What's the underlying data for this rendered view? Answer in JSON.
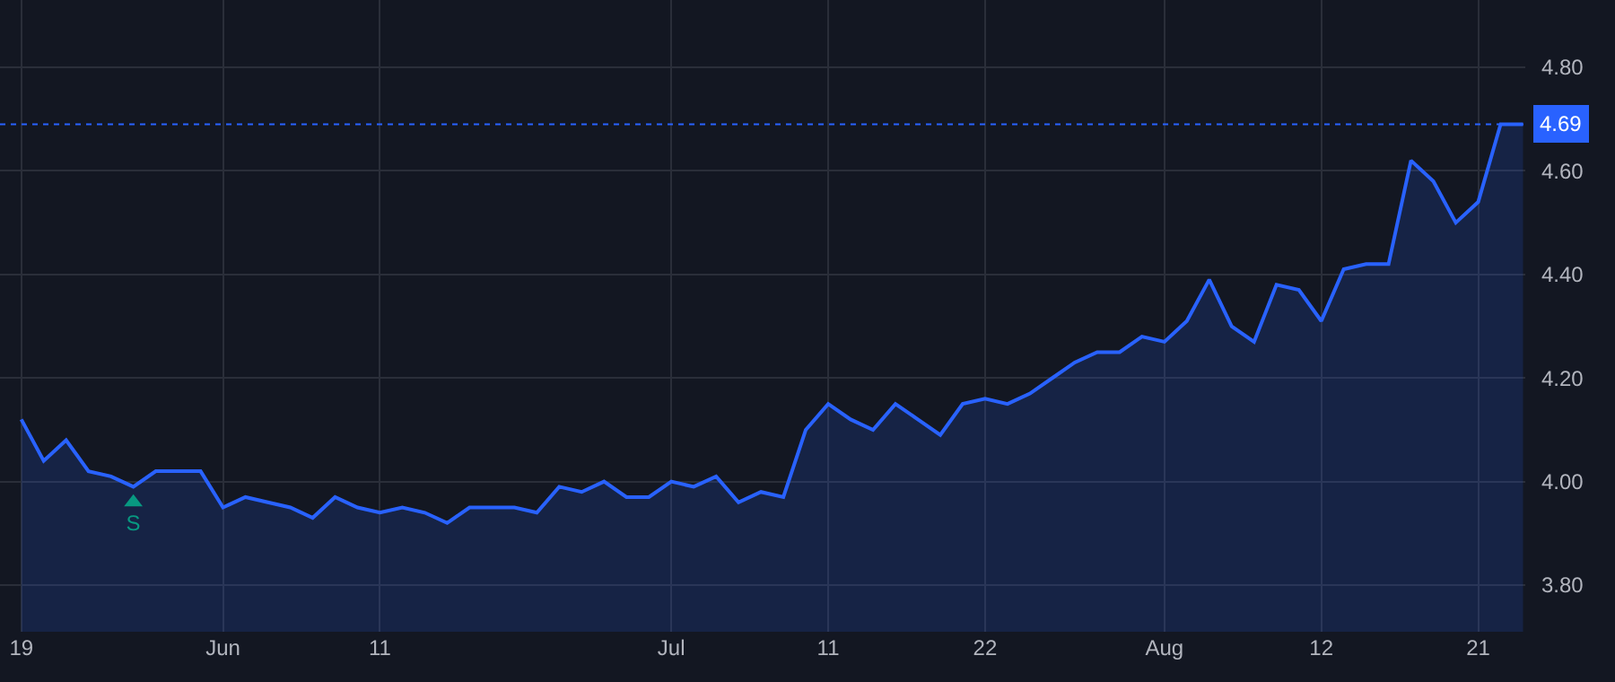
{
  "chart_data": {
    "type": "area",
    "categories": [
      "19",
      null,
      null,
      null,
      null,
      null,
      null,
      null,
      null,
      "Jun",
      null,
      null,
      null,
      null,
      null,
      null,
      "11",
      null,
      null,
      null,
      null,
      null,
      null,
      null,
      null,
      null,
      null,
      null,
      null,
      "Jul",
      null,
      null,
      null,
      null,
      null,
      null,
      "11",
      null,
      null,
      null,
      null,
      null,
      null,
      "22",
      null,
      null,
      null,
      null,
      null,
      null,
      null,
      "Aug",
      null,
      null,
      null,
      null,
      null,
      null,
      "12",
      null,
      null,
      null,
      null,
      null,
      null,
      "21",
      null,
      null
    ],
    "series": [
      {
        "color": "#2962ff",
        "values": [
          4.12,
          4.04,
          4.08,
          4.02,
          4.01,
          3.99,
          4.02,
          4.02,
          4.02,
          3.95,
          3.97,
          3.96,
          3.95,
          3.93,
          3.97,
          3.95,
          3.94,
          3.95,
          3.94,
          3.92,
          3.95,
          3.95,
          3.95,
          3.94,
          3.99,
          3.98,
          4.0,
          3.97,
          3.97,
          4.0,
          3.99,
          4.01,
          3.96,
          3.98,
          3.97,
          4.1,
          4.15,
          4.12,
          4.1,
          4.15,
          4.12,
          4.09,
          4.15,
          4.16,
          4.15,
          4.17,
          4.2,
          4.23,
          4.25,
          4.25,
          4.28,
          4.27,
          4.31,
          4.39,
          4.3,
          4.27,
          4.38,
          4.37,
          4.31,
          4.41,
          4.42,
          4.42,
          4.62,
          4.58,
          4.5,
          4.54,
          4.69,
          4.69
        ]
      },
      {
        "type": "scatter",
        "color": "#089981",
        "marker": "triangle",
        "values": [
          null,
          null,
          null,
          null,
          null,
          3.96,
          null,
          null,
          null,
          null,
          null,
          null,
          null,
          null,
          null,
          null,
          null,
          null,
          null,
          null,
          null,
          null,
          null,
          null,
          null,
          null,
          null,
          null,
          null,
          null,
          null,
          null,
          null,
          null,
          null,
          null,
          null,
          null,
          null,
          null,
          null,
          null,
          null,
          null,
          null,
          null,
          null,
          null,
          null,
          null,
          null,
          null,
          null,
          null,
          null,
          null,
          null,
          null,
          null,
          null,
          null,
          null,
          null,
          null,
          null,
          null,
          null,
          null
        ],
        "value_labels": [
          null,
          null,
          null,
          null,
          null,
          "S",
          null,
          null,
          null,
          null,
          null,
          null,
          null,
          null,
          null,
          null,
          null,
          null,
          null,
          null,
          null,
          null,
          null,
          null,
          null,
          null,
          null,
          null,
          null,
          null,
          null,
          null,
          null,
          null,
          null,
          null,
          null,
          null,
          null,
          null,
          null,
          null,
          null,
          null,
          null,
          null,
          null,
          null,
          null,
          null,
          null,
          null,
          null,
          null,
          null,
          null,
          null,
          null,
          null,
          null,
          null,
          null,
          null,
          null,
          null,
          null,
          null,
          null
        ]
      }
    ],
    "ylim": [
      3.71,
      4.93
    ],
    "yticks": [
      {
        "value": 3.8,
        "label": "3.80"
      },
      {
        "value": 4.0,
        "label": "4.00"
      },
      {
        "value": 4.2,
        "label": "4.20"
      },
      {
        "value": 4.4,
        "label": "4.40"
      },
      {
        "value": 4.6,
        "label": "4.60"
      },
      {
        "value": 4.8,
        "label": "4.80"
      }
    ],
    "ref_lines": [
      {
        "axis": "y",
        "value": 4.69,
        "label": "4.69",
        "color": "#2962ff",
        "line_style": "dotted"
      }
    ],
    "grid": true
  }
}
